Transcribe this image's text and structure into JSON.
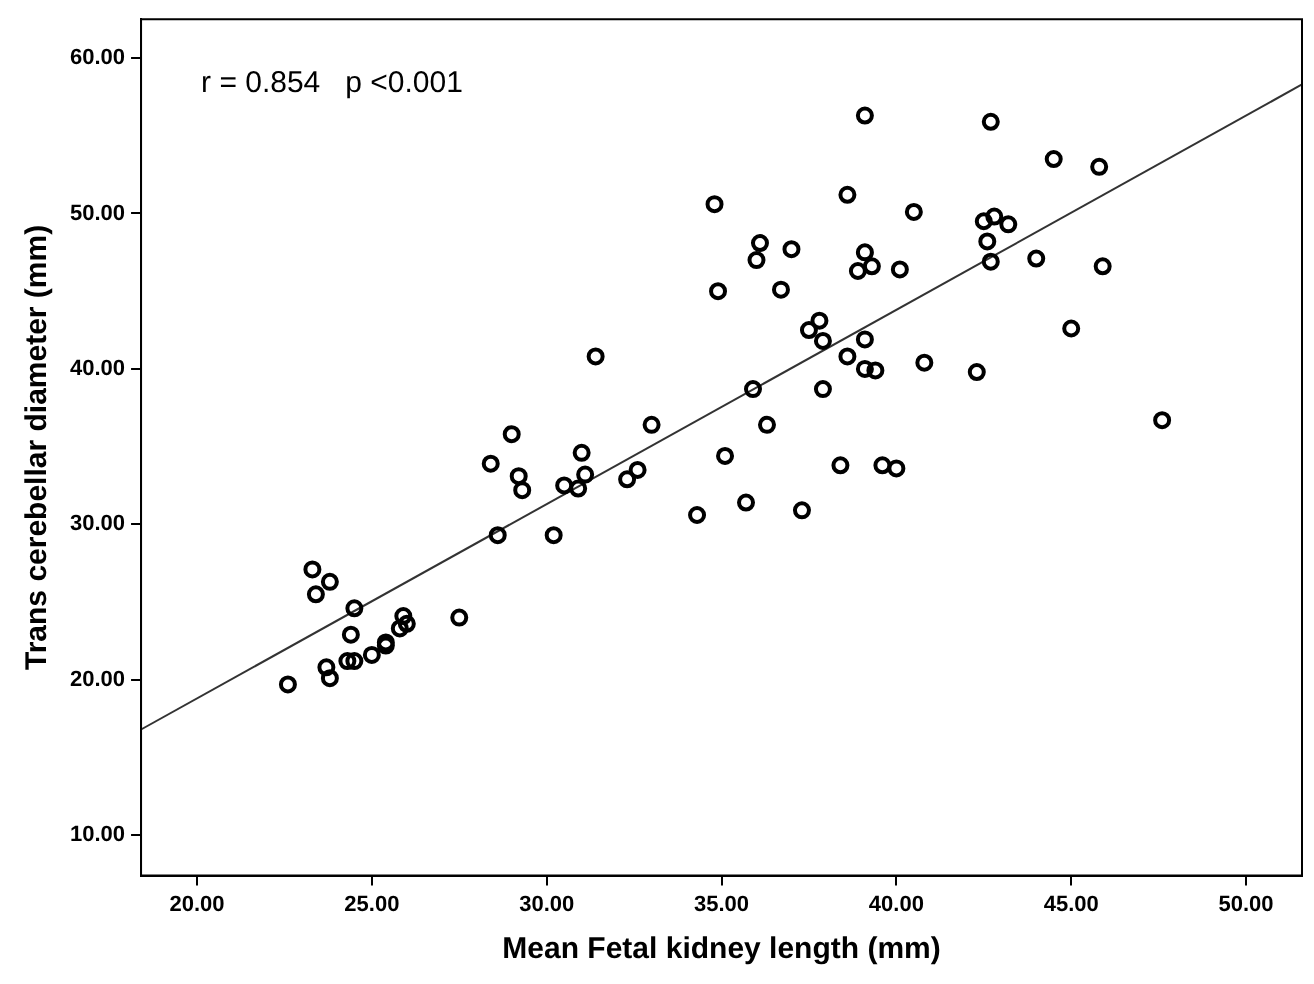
{
  "chart_data": {
    "type": "scatter",
    "xlabel": "Mean Fetal kidney length (mm)",
    "ylabel": "Trans cerebellar diameter (mm)",
    "annotations": [
      "r = 0.854   p <0.001"
    ],
    "xlim": [
      18.4,
      51.6
    ],
    "ylim": [
      7.4,
      62.5
    ],
    "xticks": [
      {
        "value": 20,
        "label": "20.00"
      },
      {
        "value": 25,
        "label": "25.00"
      },
      {
        "value": 30,
        "label": "30.00"
      },
      {
        "value": 35,
        "label": "35.00"
      },
      {
        "value": 40,
        "label": "40.00"
      },
      {
        "value": 45,
        "label": "45.00"
      },
      {
        "value": 50,
        "label": "50.00"
      }
    ],
    "yticks": [
      {
        "value": 10,
        "label": "10.00"
      },
      {
        "value": 20,
        "label": "20.00"
      },
      {
        "value": 30,
        "label": "30.00"
      },
      {
        "value": 40,
        "label": "40.00"
      },
      {
        "value": 50,
        "label": "50.00"
      },
      {
        "value": 60,
        "label": "60.00"
      }
    ],
    "grid": false,
    "legend": false,
    "marker": "circle",
    "series": [
      {
        "type": "scatter",
        "color": "#000000",
        "x": [
          22.6,
          23.3,
          23.8,
          23.4,
          24.5,
          24.4,
          23.7,
          23.8,
          24.3,
          24.5,
          25.0,
          25.4,
          25.4,
          25.8,
          25.9,
          26.0,
          27.5,
          28.6,
          28.4,
          29.0,
          29.2,
          29.3,
          30.2,
          30.5,
          30.9,
          31.1,
          31.0,
          31.4,
          32.3,
          32.6,
          33.0,
          34.3,
          35.1,
          35.7,
          35.9,
          39.1,
          42.7,
          44.5,
          45.8,
          34.8,
          38.6,
          40.5,
          42.5,
          42.8,
          43.2,
          42.6,
          36.1,
          36.0,
          37.0,
          39.1,
          38.9,
          39.3,
          40.1,
          42.7,
          44.0,
          45.9,
          34.9,
          36.7,
          37.8,
          37.5,
          37.9,
          39.1,
          38.6,
          39.1,
          39.4,
          40.8,
          42.3,
          45.0,
          47.6,
          37.9,
          36.3,
          38.4,
          39.6,
          40.0,
          37.3
        ],
        "values": [
          19.7,
          27.1,
          26.3,
          25.5,
          24.6,
          22.9,
          20.8,
          20.1,
          21.2,
          21.2,
          21.6,
          22.2,
          22.4,
          23.3,
          24.1,
          23.6,
          24.0,
          29.3,
          33.9,
          35.8,
          33.1,
          32.2,
          29.3,
          32.5,
          32.3,
          33.2,
          34.6,
          40.8,
          32.9,
          33.5,
          36.4,
          30.6,
          34.4,
          31.4,
          38.7,
          56.3,
          55.9,
          53.5,
          53.0,
          50.6,
          51.2,
          50.1,
          49.5,
          49.8,
          49.3,
          48.2,
          48.1,
          47.0,
          47.7,
          47.5,
          46.3,
          46.6,
          46.4,
          46.9,
          47.1,
          46.6,
          45.0,
          45.1,
          43.1,
          42.5,
          41.8,
          41.9,
          40.8,
          40.0,
          39.9,
          40.4,
          39.8,
          42.6,
          36.7,
          38.7,
          36.4,
          33.8,
          33.8,
          33.6,
          30.9
        ]
      },
      {
        "type": "line",
        "color": "#333333",
        "marker": "none",
        "x": [
          18.4,
          51.6
        ],
        "values": [
          16.8,
          58.3
        ]
      }
    ]
  }
}
